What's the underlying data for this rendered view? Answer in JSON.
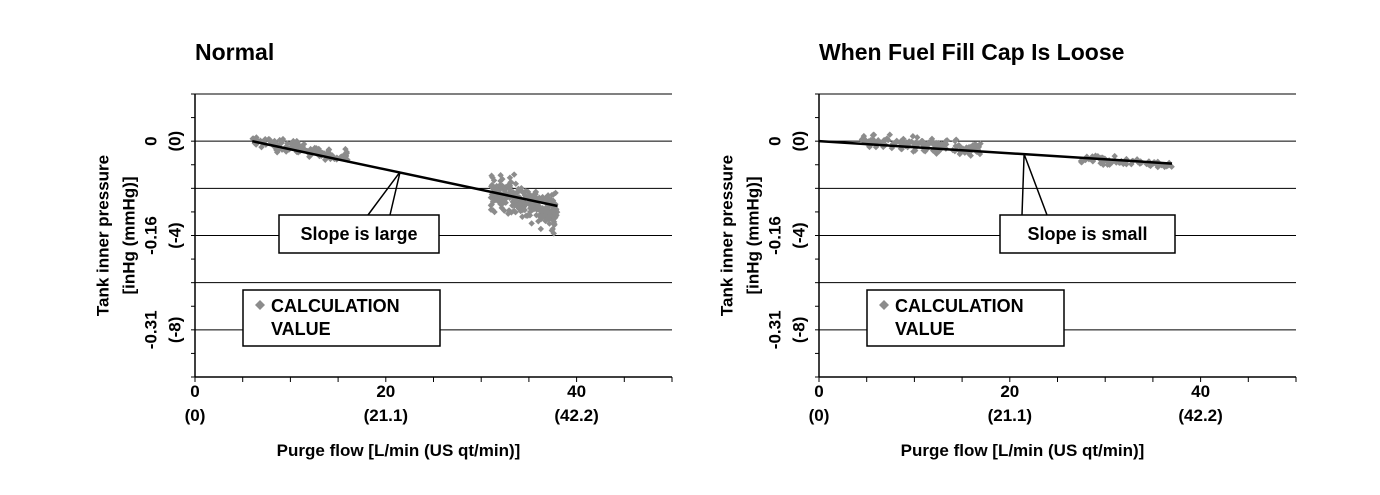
{
  "chart_data": [
    {
      "type": "scatter",
      "title": "Normal",
      "xlabel": "Purge flow [L/min (US qt/min)]",
      "ylabel": "Tank inner pressure",
      "ylabel_units": "[inHg (mmHg)]",
      "xlim": [
        0,
        50
      ],
      "ylim": [
        -10,
        2
      ],
      "x_ticks": [
        {
          "value": 0,
          "label": "0",
          "sublabel": "(0)"
        },
        {
          "value": 20,
          "label": "20",
          "sublabel": "(21.1)"
        },
        {
          "value": 40,
          "label": "40",
          "sublabel": "(42.2)"
        }
      ],
      "y_ticks": [
        {
          "value": 0,
          "label": "0",
          "sublabel": "(0)"
        },
        {
          "value": -4,
          "label": "-0.16",
          "sublabel": "(-4)"
        },
        {
          "value": -8,
          "label": "-0.31",
          "sublabel": "(-8)"
        }
      ],
      "y_gridlines": [
        2,
        0,
        -2,
        -4,
        -6,
        -8
      ],
      "grid": true,
      "legend": {
        "marker": "◆",
        "line1": "CALCULATION",
        "line2": "VALUE",
        "placement": "bottom-left"
      },
      "series": [
        {
          "name": "CALCULATION VALUE",
          "clusters": [
            {
              "x_start": 6,
              "x_end": 16,
              "y_start": 0.0,
              "y_end": -0.65,
              "spread": 0.45,
              "count": 120
            },
            {
              "x_start": 31,
              "x_end": 38,
              "y_start": -2.1,
              "y_end": -3.0,
              "spread": 1.3,
              "count": 260
            }
          ]
        }
      ],
      "trendline": {
        "x": [
          6,
          38
        ],
        "y": [
          0.0,
          -2.75
        ]
      },
      "annotation": {
        "text": "Slope is large",
        "anchor": [
          21.5,
          -1.3
        ]
      }
    },
    {
      "type": "scatter",
      "title": "When Fuel Fill Cap Is Loose",
      "xlabel": "Purge flow [L/min (US qt/min)]",
      "ylabel": "Tank inner pressure",
      "ylabel_units": "[inHg (mmHg)]",
      "xlim": [
        0,
        50
      ],
      "ylim": [
        -10,
        2
      ],
      "x_ticks": [
        {
          "value": 0,
          "label": "0",
          "sublabel": "(0)"
        },
        {
          "value": 20,
          "label": "20",
          "sublabel": "(21.1)"
        },
        {
          "value": 40,
          "label": "40",
          "sublabel": "(42.2)"
        }
      ],
      "y_ticks": [
        {
          "value": 0,
          "label": "0",
          "sublabel": "(0)"
        },
        {
          "value": -4,
          "label": "-0.16",
          "sublabel": "(-4)"
        },
        {
          "value": -8,
          "label": "-0.31",
          "sublabel": "(-8)"
        }
      ],
      "y_gridlines": [
        2,
        0,
        -2,
        -4,
        -6,
        -8
      ],
      "grid": true,
      "legend": {
        "marker": "◆",
        "line1": "CALCULATION",
        "line2": "VALUE",
        "placement": "bottom-left"
      },
      "series": [
        {
          "name": "CALCULATION VALUE",
          "clusters": [
            {
              "x_start": 4.5,
              "x_end": 17,
              "y_start": 0.0,
              "y_end": -0.35,
              "spread": 0.5,
              "count": 170
            },
            {
              "x_start": 27,
              "x_end": 37,
              "y_start": -0.75,
              "y_end": -1.0,
              "spread": 0.3,
              "count": 80
            }
          ]
        }
      ],
      "trendline": {
        "x": [
          0,
          37
        ],
        "y": [
          0.0,
          -0.95
        ]
      },
      "annotation": {
        "text": "Slope is small",
        "anchor": [
          21.5,
          -0.55
        ]
      }
    }
  ],
  "colors": {
    "points": "#8c8c8c",
    "axis": "#000000",
    "grid": "#000000"
  }
}
